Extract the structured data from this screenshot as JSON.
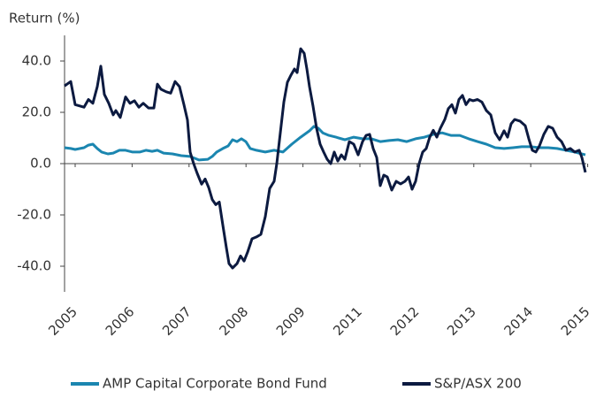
{
  "chart_data": {
    "type": "line",
    "y_axis_label": "Return (%)",
    "xlim": [
      0,
      590
    ],
    "xticks": [
      {
        "value": 12,
        "label": "2005"
      },
      {
        "value": 76.4,
        "label": "2006"
      },
      {
        "value": 140.8,
        "label": "2007"
      },
      {
        "value": 205.2,
        "label": "2008"
      },
      {
        "value": 269.6,
        "label": "2009"
      },
      {
        "value": 334,
        "label": "2011"
      },
      {
        "value": 398.4,
        "label": "2012"
      },
      {
        "value": 462.8,
        "label": "2013"
      },
      {
        "value": 527.2,
        "label": "2014"
      },
      {
        "value": 591.6,
        "label": "2015"
      }
    ],
    "ylim": [
      -50,
      50
    ],
    "yticks": [
      {
        "value": 40,
        "label": "40.0"
      },
      {
        "value": 20,
        "label": "20.0"
      },
      {
        "value": 0,
        "label": "0.0"
      },
      {
        "value": -20,
        "label": "-20.0"
      },
      {
        "value": -40,
        "label": "-40.0"
      }
    ],
    "legend": "bottom",
    "series": [
      {
        "name": "AMP Capital Corporate Bond Fund",
        "color": "#1b86b0",
        "x": [
          0,
          7,
          12,
          22,
          27,
          32,
          37,
          42,
          49,
          55,
          62,
          69,
          77,
          85,
          92,
          99,
          105,
          112,
          122,
          132,
          142,
          152,
          162,
          167,
          172,
          179,
          185,
          190,
          195,
          200,
          205,
          210,
          217,
          227,
          237,
          247,
          257,
          267,
          277,
          282,
          287,
          292,
          299,
          307,
          317,
          327,
          337,
          347,
          357,
          367,
          377,
          387,
          397,
          407,
          417,
          427,
          437,
          447,
          457,
          467,
          477,
          487,
          497,
          507,
          517,
          527,
          537,
          547,
          557,
          567,
          577,
          589
        ],
        "values": [
          6.2,
          5.9,
          5.5,
          6.2,
          7.2,
          7.6,
          5.9,
          4.5,
          3.8,
          4.1,
          5.2,
          5.2,
          4.5,
          4.5,
          5.2,
          4.8,
          5.2,
          4.1,
          3.8,
          3.1,
          2.8,
          1.4,
          1.7,
          2.8,
          4.5,
          5.9,
          6.9,
          9.3,
          8.6,
          9.7,
          8.6,
          5.9,
          5.2,
          4.5,
          5.2,
          4.5,
          7.6,
          10.3,
          12.8,
          14.5,
          13.8,
          12,
          11,
          10.3,
          9.3,
          10.3,
          9.7,
          9.7,
          8.6,
          9,
          9.3,
          8.6,
          9.7,
          10.3,
          11.4,
          12,
          11,
          11,
          9.7,
          8.6,
          7.6,
          6.2,
          5.9,
          6.2,
          6.6,
          6.6,
          6.2,
          6.2,
          5.9,
          5.2,
          4.5,
          3.4
        ]
      },
      {
        "name": "S&P/ASX 200",
        "color": "#0c1a40",
        "x": [
          0,
          7,
          12,
          22,
          27,
          32,
          37,
          41,
          45,
          50,
          55,
          58,
          63,
          69,
          74,
          79,
          84,
          89,
          95,
          101,
          105,
          109,
          115,
          120,
          125,
          130,
          135,
          139,
          142,
          146,
          150,
          155,
          159,
          163,
          167,
          171,
          175,
          179,
          183,
          186,
          190,
          195,
          199,
          203,
          207,
          212,
          217,
          222,
          227,
          232,
          237,
          240,
          244,
          248,
          252,
          256,
          260,
          263,
          267,
          271,
          274,
          277,
          281,
          285,
          289,
          293,
          297,
          301,
          305,
          309,
          313,
          317,
          322,
          327,
          332,
          337,
          341,
          345,
          349,
          353,
          357,
          361,
          365,
          370,
          375,
          380,
          385,
          389,
          393,
          397,
          401,
          405,
          409,
          413,
          417,
          421,
          425,
          430,
          434,
          438,
          442,
          446,
          450,
          454,
          458,
          462,
          467,
          472,
          477,
          482,
          487,
          492,
          497,
          501,
          505,
          509,
          515,
          521,
          525,
          529,
          533,
          537,
          542,
          547,
          552,
          557,
          562,
          567,
          572,
          577,
          582,
          585,
          589
        ],
        "values": [
          30.3,
          32,
          23,
          22,
          25,
          23.5,
          30,
          38,
          27,
          23.5,
          19,
          20.7,
          18,
          26,
          23.5,
          24.5,
          22,
          23.5,
          21.7,
          21.7,
          31,
          29,
          28,
          27.5,
          32,
          30,
          23,
          17,
          4.5,
          0,
          -3.8,
          -8,
          -6,
          -9.3,
          -14,
          -16,
          -15,
          -24,
          -32.8,
          -39,
          -40.7,
          -39,
          -36,
          -38,
          -34.5,
          -29.3,
          -28.6,
          -27.6,
          -20.7,
          -9.7,
          -6.9,
          0,
          12,
          24,
          31.7,
          34.5,
          36.9,
          35.5,
          44.8,
          43,
          37,
          30,
          22.4,
          13.8,
          7.6,
          4.5,
          1.7,
          0,
          4.5,
          1,
          3.4,
          1.7,
          8.6,
          7.6,
          3.4,
          8.6,
          11,
          11.4,
          5.9,
          2.4,
          -8.6,
          -4.5,
          -5.2,
          -10.3,
          -6.9,
          -7.9,
          -6.9,
          -5.2,
          -10,
          -6.9,
          0,
          4.5,
          5.9,
          10.3,
          13,
          10.3,
          13.8,
          17.2,
          21.4,
          23,
          19.7,
          25,
          26.6,
          23,
          25,
          24.5,
          25,
          24,
          20.7,
          19,
          12,
          9.3,
          12.8,
          10.3,
          15.5,
          17.2,
          16.6,
          14.8,
          9.7,
          5.2,
          4.5,
          6.9,
          11.4,
          14.5,
          13.8,
          10.3,
          8.6,
          5.2,
          5.9,
          4.5,
          5.2,
          2.4,
          -3.4
        ]
      }
    ]
  }
}
